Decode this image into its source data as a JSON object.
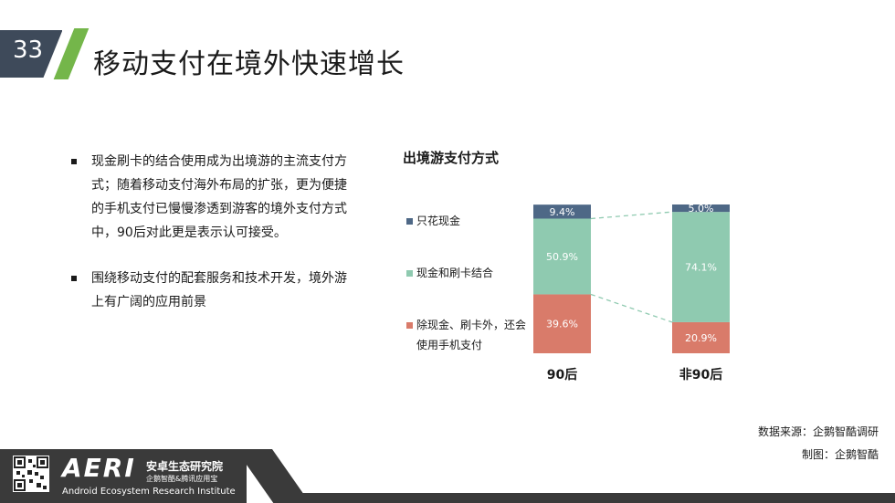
{
  "page_number": "33",
  "title": "移动支付在境外快速增长",
  "bullets": [
    "现金刷卡的结合使用成为出境游的主流支付方式；随着移动支付海外布局的扩张，更为便捷的手机支付已慢慢渗透到游客的境外支付方式中，90后对此更是表示认可接受。",
    "围绕移动支付的配套服务和技术开发，境外游上有广阔的应用前景"
  ],
  "colors": {
    "accent_green": "#74b64a",
    "dark": "#3a3a3a",
    "series": [
      "#d97b6a",
      "#8fcab0",
      "#4e6886"
    ]
  },
  "chart_data": {
    "type": "bar",
    "stacked": true,
    "title": "出境游支付方式",
    "categories": [
      "90后",
      "非90后"
    ],
    "series": [
      {
        "name": "除现金、刷卡外，还会使用手机支付",
        "values": [
          39.6,
          20.9
        ],
        "labels": [
          "39.6%",
          "20.9%"
        ],
        "color": "#d97b6a"
      },
      {
        "name": "现金和刷卡结合",
        "values": [
          50.9,
          74.1
        ],
        "labels": [
          "50.9%",
          "74.1%"
        ],
        "color": "#8fcab0"
      },
      {
        "name": "只花现金",
        "values": [
          9.4,
          5.0
        ],
        "labels": [
          "9.4%",
          "5.0%"
        ],
        "color": "#4e6886"
      }
    ],
    "legend_order": [
      "只花现金",
      "现金和刷卡结合",
      "除现金、刷卡外，还会使用手机支付"
    ],
    "legend_position": "left",
    "ylim": [
      0,
      100
    ],
    "grid": false,
    "connector_lines": true
  },
  "source": {
    "line1": "数据来源：企鹅智酷调研",
    "line2": "制图：企鹅智酷"
  },
  "footer": {
    "logo": "AERI",
    "org_cn": "安卓生态研究院",
    "org_sub": "企鹅智酷&腾讯应用宝",
    "org_en": "Android Ecosystem Research Institute"
  }
}
